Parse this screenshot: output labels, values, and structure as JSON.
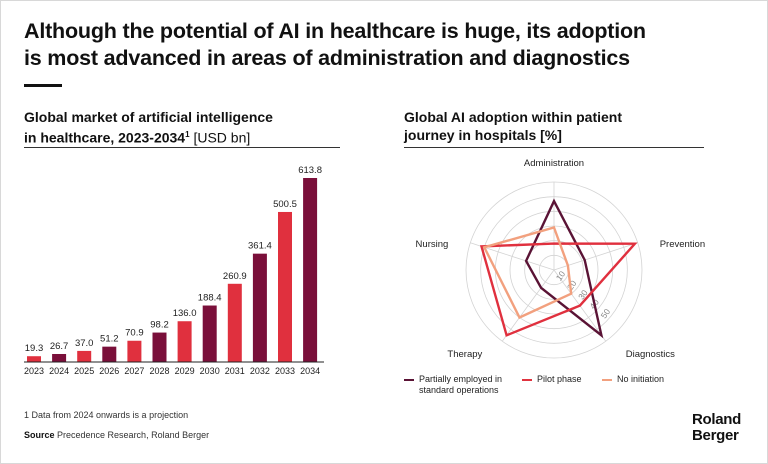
{
  "headline": {
    "line1": "Although the potential of AI in healthcare is huge, its adoption",
    "line2": "is most advanced in areas of administration and diagnostics"
  },
  "bar_chart": {
    "title_line1": "Global market of artificial intelligence",
    "title_line2_main": "in healthcare, 2023-2034",
    "title_sup": "1",
    "title_unit": " [USD bn]"
  },
  "radar_chart": {
    "title_line1": "Global AI adoption within patient",
    "title_line2": "journey in hospitals [%]"
  },
  "legend": [
    {
      "line1": "Partially employed in",
      "line2": "standard operations",
      "color": "#5a1335"
    },
    {
      "line1": "Pilot phase",
      "line2": "",
      "color": "#e0333f"
    },
    {
      "line1": "No initiation",
      "line2": "",
      "color": "#f2a07e"
    }
  ],
  "footnote": "1 Data from 2024 onwards is a projection",
  "source": {
    "label": "Source",
    "text": " Precedence Research, Roland Berger"
  },
  "logo": {
    "line1": "Roland",
    "line2": "Berger"
  },
  "colors": {
    "dark": "#7a0f3a",
    "red": "#e0303e",
    "orange": "#f2a07e",
    "darkline": "#5a1335"
  },
  "chart_data": [
    {
      "type": "bar",
      "categories": [
        "2023",
        "2024",
        "2025",
        "2026",
        "2027",
        "2028",
        "2029",
        "2030",
        "2031",
        "2032",
        "2033",
        "2034"
      ],
      "values": [
        19.3,
        26.7,
        37.0,
        51.2,
        70.9,
        98.2,
        136.0,
        188.4,
        260.9,
        361.4,
        500.5,
        613.8
      ],
      "value_labels": [
        "19.3",
        "26.7",
        "37.0",
        "51.2",
        "70.9",
        "98.2",
        "136.0",
        "188.4",
        "260.9",
        "361.4",
        "500.5",
        "613.8"
      ],
      "bar_colors": [
        "red",
        "dark",
        "red",
        "dark",
        "red",
        "dark",
        "red",
        "dark",
        "red",
        "dark",
        "red",
        "dark"
      ],
      "title": "Global market of artificial intelligence in healthcare, 2023-2034 [USD bn]",
      "ylim": [
        0,
        613.8
      ]
    },
    {
      "type": "radar",
      "axes": [
        "Administration",
        "Prevention",
        "Diagnostics",
        "Therapy",
        "Nursing"
      ],
      "ring_labels": [
        "10",
        "20",
        "30",
        "40",
        "50"
      ],
      "rmax": 60,
      "series": [
        {
          "name": "Partially employed in standard operations",
          "values": [
            47,
            22,
            55,
            15,
            20
          ],
          "color": "darkline"
        },
        {
          "name": "Pilot phase",
          "values": [
            18,
            58,
            30,
            55,
            52
          ],
          "color": "red"
        },
        {
          "name": "No initiation",
          "values": [
            29,
            10,
            20,
            40,
            50
          ],
          "color": "orange"
        }
      ],
      "title": "Global AI adoption within patient journey in hospitals [%]"
    }
  ]
}
